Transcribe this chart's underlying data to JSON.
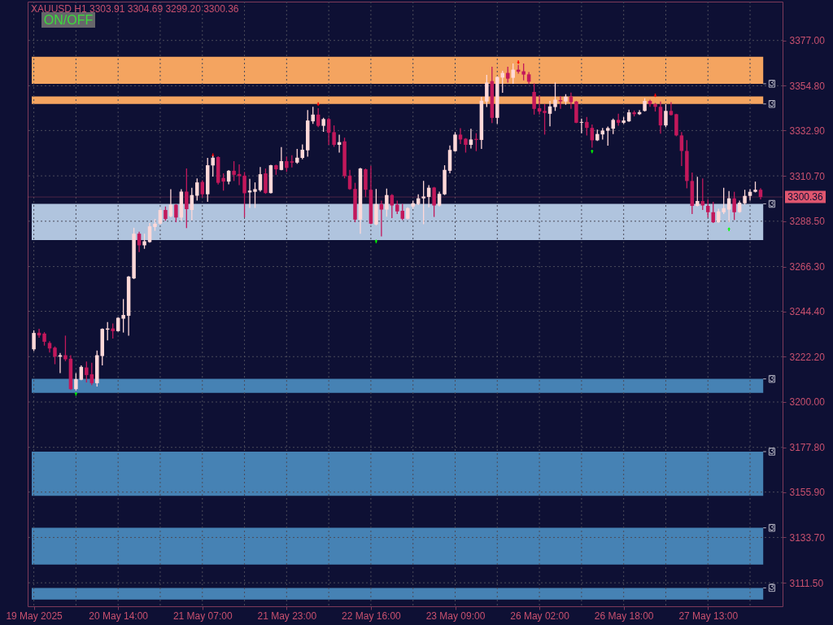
{
  "chart_data": {
    "type": "candlestick",
    "title": "XAUUSD H1 3303.91 3304.69 3299.20 3300.36",
    "annotations": [
      "ON/OFF"
    ],
    "categories": [
      "19 May 2025",
      null,
      null,
      null,
      null,
      null,
      null,
      null,
      null,
      null,
      null,
      null,
      null,
      null,
      null,
      null,
      "20 May 14:00",
      null,
      null,
      null,
      null,
      null,
      null,
      null,
      null,
      null,
      null,
      null,
      null,
      null,
      null,
      null,
      "21 May 07:00",
      null,
      null,
      null,
      null,
      null,
      null,
      null,
      null,
      null,
      null,
      null,
      null,
      null,
      null,
      null,
      "21 May 23:00",
      null,
      null,
      null,
      null,
      null,
      null,
      null,
      null,
      null,
      null,
      null,
      null,
      null,
      null,
      null,
      "22 May 16:00",
      null,
      null,
      null,
      null,
      null,
      null,
      null,
      null,
      null,
      null,
      null,
      null,
      null,
      null,
      null,
      "23 May 09:00",
      null,
      null,
      null,
      null,
      null,
      null,
      null,
      null,
      null,
      null,
      null,
      null,
      null,
      null,
      null,
      "26 May 02:00",
      null,
      null,
      null,
      null,
      null,
      null,
      null,
      null,
      null,
      null,
      null,
      null,
      null,
      null,
      null,
      "26 May 18:00",
      null,
      null,
      null,
      null,
      null,
      null,
      null,
      null,
      null,
      null,
      null,
      null,
      null,
      null,
      null,
      "27 May 13:00",
      null,
      null,
      null,
      null,
      null,
      null,
      null,
      null,
      null,
      null
    ],
    "ohlc": [
      [
        3225.8,
        3235.1,
        3224.9,
        3233.8
      ],
      [
        3233.9,
        3235.8,
        3231.5,
        3232.6
      ],
      [
        3233.5,
        3234.2,
        3227.6,
        3229.5
      ],
      [
        3228.9,
        3229.8,
        3224.2,
        3226.2
      ],
      [
        3226.6,
        3227.2,
        3218.5,
        3222.2
      ],
      [
        3222.2,
        3224.0,
        3214.1,
        3222.9
      ],
      [
        3222.9,
        3232.5,
        3220.0,
        3220.9
      ],
      [
        3221.2,
        3222.9,
        3205.9,
        3206.3
      ],
      [
        3206.3,
        3214.1,
        3205.6,
        3211.2
      ],
      [
        3210.9,
        3217.9,
        3210.7,
        3217.2
      ],
      [
        3216.9,
        3219.8,
        3209.6,
        3213.2
      ],
      [
        3213.6,
        3219.2,
        3208.3,
        3209.2
      ],
      [
        3209.2,
        3225.2,
        3207.6,
        3222.9
      ],
      [
        3222.5,
        3236.0,
        3217.9,
        3235.8
      ],
      [
        3235.4,
        3239.1,
        3230.2,
        3236.0
      ],
      [
        3236.0,
        3238.4,
        3231.1,
        3234.7
      ],
      [
        3234.7,
        3241.5,
        3234.5,
        3241.2
      ],
      [
        3240.8,
        3250.4,
        3234.0,
        3242.6
      ],
      [
        3242.2,
        3261.6,
        3232.5,
        3261.4
      ],
      [
        3260.5,
        3285.3,
        3260.2,
        3282.4
      ],
      [
        3282.4,
        3283.4,
        3273.4,
        3276.7
      ],
      [
        3276.7,
        3282.4,
        3275.0,
        3278.7
      ],
      [
        3278.3,
        3287.6,
        3278.0,
        3286.0
      ],
      [
        3285.7,
        3289.6,
        3283.8,
        3287.3
      ],
      [
        3287.3,
        3294.9,
        3286.9,
        3294.0
      ],
      [
        3294.0,
        3295.7,
        3288.7,
        3289.6
      ],
      [
        3290.9,
        3304.2,
        3290.4,
        3296.6
      ],
      [
        3296.6,
        3296.9,
        3288.0,
        3290.3
      ],
      [
        3290.3,
        3304.2,
        3288.7,
        3303.0
      ],
      [
        3303.0,
        3314.3,
        3285.1,
        3294.4
      ],
      [
        3294.0,
        3304.9,
        3288.9,
        3301.3
      ],
      [
        3301.0,
        3309.5,
        3298.6,
        3307.5
      ],
      [
        3307.7,
        3308.6,
        3300.2,
        3301.7
      ],
      [
        3301.7,
        3319.5,
        3298.0,
        3315.9
      ],
      [
        3315.8,
        3320.5,
        3310.3,
        3319.6
      ],
      [
        3319.9,
        3320.3,
        3306.5,
        3307.3
      ],
      [
        3309.7,
        3311.9,
        3303.5,
        3307.9
      ],
      [
        3307.9,
        3313.5,
        3306.6,
        3313.2
      ],
      [
        3313.2,
        3317.9,
        3308.2,
        3311.2
      ],
      [
        3311.6,
        3316.3,
        3306.2,
        3310.6
      ],
      [
        3310.8,
        3312.6,
        3290.4,
        3302.2
      ],
      [
        3302.6,
        3309.3,
        3295.0,
        3303.5
      ],
      [
        3302.9,
        3307.5,
        3295.0,
        3304.2
      ],
      [
        3303.7,
        3315.0,
        3303.0,
        3311.5
      ],
      [
        3311.9,
        3314.3,
        3301.9,
        3302.3
      ],
      [
        3302.3,
        3316.1,
        3302.1,
        3315.9
      ],
      [
        3315.9,
        3316.2,
        3311.2,
        3313.9
      ],
      [
        3313.6,
        3324.8,
        3313.4,
        3317.9
      ],
      [
        3317.9,
        3320.1,
        3312.6,
        3314.6
      ],
      [
        3317.8,
        3320.8,
        3314.8,
        3317.2
      ],
      [
        3317.2,
        3323.9,
        3316.6,
        3319.6
      ],
      [
        3319.5,
        3326.1,
        3318.8,
        3323.5
      ],
      [
        3323.2,
        3342.9,
        3320.1,
        3337.8
      ],
      [
        3337.4,
        3344.5,
        3336.1,
        3340.7
      ],
      [
        3340.7,
        3343.8,
        3334.5,
        3335.2
      ],
      [
        3335.2,
        3339.1,
        3332.3,
        3338.5
      ],
      [
        3338.5,
        3339.1,
        3325.9,
        3331.8
      ],
      [
        3332.1,
        3335.4,
        3324.9,
        3325.9
      ],
      [
        3325.9,
        3330.9,
        3322.1,
        3327.2
      ],
      [
        3327.6,
        3329.4,
        3309.5,
        3310.6
      ],
      [
        3310.8,
        3313.6,
        3303.9,
        3304.2
      ],
      [
        3304.3,
        3307.3,
        3288.0,
        3289.3
      ],
      [
        3289.3,
        3314.6,
        3282.4,
        3314.3
      ],
      [
        3313.9,
        3314.3,
        3300.3,
        3303.9
      ],
      [
        3303.9,
        3315.6,
        3287.0,
        3287.3
      ],
      [
        3286.9,
        3304.3,
        3286.5,
        3296.9
      ],
      [
        3296.9,
        3298.6,
        3281.1,
        3294.2
      ],
      [
        3294.2,
        3304.5,
        3290.7,
        3301.3
      ],
      [
        3301.3,
        3301.8,
        3290.0,
        3296.2
      ],
      [
        3296.6,
        3298.6,
        3292.0,
        3293.3
      ],
      [
        3293.6,
        3297.0,
        3289.0,
        3289.7
      ],
      [
        3289.7,
        3295.3,
        3289.5,
        3294.9
      ],
      [
        3295.7,
        3298.6,
        3294.6,
        3297.3
      ],
      [
        3296.9,
        3301.7,
        3296.4,
        3299.7
      ],
      [
        3299.7,
        3308.3,
        3287.0,
        3300.6
      ],
      [
        3300.4,
        3306.2,
        3295.3,
        3304.9
      ],
      [
        3305.0,
        3305.3,
        3290.6,
        3296.2
      ],
      [
        3296.2,
        3303.0,
        3295.7,
        3301.9
      ],
      [
        3301.7,
        3315.9,
        3301.3,
        3313.6
      ],
      [
        3313.2,
        3325.6,
        3311.9,
        3323.4
      ],
      [
        3322.8,
        3332.1,
        3322.5,
        3330.9
      ],
      [
        3330.9,
        3334.1,
        3326.3,
        3328.5
      ],
      [
        3328.9,
        3329.2,
        3322.1,
        3325.9
      ],
      [
        3325.9,
        3333.8,
        3324.1,
        3328.5
      ],
      [
        3328.8,
        3331.6,
        3322.8,
        3328.3
      ],
      [
        3328.3,
        3349.4,
        3323.9,
        3347.5
      ],
      [
        3347.1,
        3360.1,
        3344.4,
        3356.4
      ],
      [
        3357.1,
        3364.1,
        3336.5,
        3339.1
      ],
      [
        3339.1,
        3359.4,
        3336.1,
        3359.1
      ],
      [
        3358.8,
        3362.1,
        3351.4,
        3361.1
      ],
      [
        3361.1,
        3364.1,
        3356.4,
        3358.3
      ],
      [
        3358.7,
        3365.7,
        3355.8,
        3362.7
      ],
      [
        3362.7,
        3365.0,
        3360.7,
        3361.7
      ],
      [
        3361.9,
        3365.7,
        3357.5,
        3360.3
      ],
      [
        3360.4,
        3361.5,
        3355.7,
        3356.8
      ],
      [
        3351.8,
        3356.0,
        3340.7,
        3343.5
      ],
      [
        3343.8,
        3350.2,
        3340.7,
        3342.2
      ],
      [
        3342.5,
        3345.8,
        3330.9,
        3341.5
      ],
      [
        3341.1,
        3347.4,
        3334.9,
        3344.7
      ],
      [
        3344.4,
        3356.4,
        3342.5,
        3348.0
      ],
      [
        3347.8,
        3349.8,
        3343.5,
        3347.2
      ],
      [
        3347.1,
        3350.7,
        3345.5,
        3349.5
      ],
      [
        3349.5,
        3351.5,
        3343.5,
        3346.8
      ],
      [
        3347.1,
        3347.4,
        3336.5,
        3336.7
      ],
      [
        3336.7,
        3338.7,
        3331.6,
        3337.1
      ],
      [
        3337.1,
        3339.5,
        3330.5,
        3334.2
      ],
      [
        3334.2,
        3335.8,
        3324.5,
        3328.1
      ],
      [
        3328.1,
        3333.4,
        3327.8,
        3331.2
      ],
      [
        3331.0,
        3334.2,
        3328.5,
        3332.9
      ],
      [
        3332.8,
        3334.8,
        3325.5,
        3334.1
      ],
      [
        3333.8,
        3338.7,
        3331.2,
        3338.1
      ],
      [
        3338.1,
        3341.1,
        3335.2,
        3336.7
      ],
      [
        3336.7,
        3339.5,
        3336.1,
        3337.8
      ],
      [
        3337.4,
        3343.1,
        3337.1,
        3341.8
      ],
      [
        3341.8,
        3342.7,
        3339.8,
        3340.9
      ],
      [
        3340.9,
        3342.9,
        3340.5,
        3341.9
      ],
      [
        3342.5,
        3348.7,
        3342.2,
        3347.4
      ],
      [
        3347.4,
        3348.0,
        3344.5,
        3345.8
      ],
      [
        3345.8,
        3346.4,
        3342.2,
        3344.5
      ],
      [
        3344.5,
        3347.1,
        3331.4,
        3335.4
      ],
      [
        3335.4,
        3345.8,
        3334.5,
        3342.5
      ],
      [
        3342.5,
        3346.8,
        3340.2,
        3340.5
      ],
      [
        3340.9,
        3341.1,
        3330.1,
        3330.5
      ],
      [
        3330.5,
        3332.2,
        3315.5,
        3322.9
      ],
      [
        3322.9,
        3328.2,
        3304.6,
        3308.2
      ],
      [
        3308.2,
        3312.3,
        3292.0,
        3296.0
      ],
      [
        3296.0,
        3310.2,
        3295.7,
        3298.4
      ],
      [
        3298.4,
        3309.5,
        3294.0,
        3296.2
      ],
      [
        3296.0,
        3299.3,
        3290.3,
        3292.9
      ],
      [
        3292.9,
        3298.0,
        3287.6,
        3288.0
      ],
      [
        3288.0,
        3294.6,
        3287.7,
        3293.3
      ],
      [
        3292.9,
        3304.9,
        3292.0,
        3294.9
      ],
      [
        3294.2,
        3303.3,
        3288.0,
        3299.7
      ],
      [
        3299.7,
        3302.9,
        3289.1,
        3292.9
      ],
      [
        3293.0,
        3298.6,
        3292.6,
        3297.6
      ],
      [
        3297.3,
        3303.9,
        3296.6,
        3300.9
      ],
      [
        3300.9,
        3304.2,
        3298.6,
        3302.9
      ],
      [
        3302.9,
        3307.9,
        3302.6,
        3303.9
      ],
      [
        3303.91,
        3304.69,
        3299.2,
        3300.36
      ]
    ],
    "colors": [
      "#ffd8d8",
      "#c2185b",
      "#c2185b",
      "#c2185b",
      "#c2185b",
      "#ffd8d8",
      "#c2185b",
      "#c2185b",
      "#ffd8d8",
      "#ffd8d8",
      "#c2185b",
      "#c2185b",
      "#ffd8d8",
      "#ffd8d8",
      "#ffd8d8",
      "#c2185b",
      "#ffd8d8",
      "#ffd8d8",
      "#ffd8d8",
      "#ffd8d8",
      "#c2185b",
      "#ffd8d8",
      "#ffd8d8",
      "#ffd8d8",
      "#ffd8d8",
      "#c2185b",
      "#ffd8d8",
      "#c2185b",
      "#ffd8d8",
      "#c2185b",
      "#ffd8d8",
      "#ffd8d8",
      "#c2185b",
      "#ffd8d8",
      "#ffd8d8",
      "#c2185b",
      "#c2185b",
      "#ffd8d8",
      "#c2185b",
      "#c2185b",
      "#c2185b",
      "#ffd8d8",
      "#ffd8d8",
      "#ffd8d8",
      "#c2185b",
      "#ffd8d8",
      "#c2185b",
      "#ffd8d8",
      "#c2185b",
      "#c2185b",
      "#ffd8d8",
      "#ffd8d8",
      "#ffd8d8",
      "#ffd8d8",
      "#c2185b",
      "#ffd8d8",
      "#c2185b",
      "#c2185b",
      "#ffd8d8",
      "#c2185b",
      "#c2185b",
      "#c2185b",
      "#ffd8d8",
      "#c2185b",
      "#c2185b",
      "#ffd8d8",
      "#c2185b",
      "#ffd8d8",
      "#c2185b",
      "#c2185b",
      "#c2185b",
      "#ffd8d8",
      "#ffd8d8",
      "#ffd8d8",
      "#ffd8d8",
      "#ffd8d8",
      "#c2185b",
      "#ffd8d8",
      "#ffd8d8",
      "#ffd8d8",
      "#ffd8d8",
      "#c2185b",
      "#c2185b",
      "#ffd8d8",
      "#c2185b",
      "#ffd8d8",
      "#ffd8d8",
      "#c2185b",
      "#ffd8d8",
      "#ffd8d8",
      "#c2185b",
      "#ffd8d8",
      "#c2185b",
      "#c2185b",
      "#c2185b",
      "#c2185b",
      "#c2185b",
      "#c2185b",
      "#ffd8d8",
      "#ffd8d8",
      "#c2185b",
      "#ffd8d8",
      "#c2185b",
      "#c2185b",
      "#ffd8d8",
      "#c2185b",
      "#c2185b",
      "#ffd8d8",
      "#ffd8d8",
      "#ffd8d8",
      "#ffd8d8",
      "#c2185b",
      "#ffd8d8",
      "#ffd8d8",
      "#c2185b",
      "#ffd8d8",
      "#ffd8d8",
      "#c2185b",
      "#c2185b",
      "#c2185b",
      "#ffd8d8",
      "#c2185b",
      "#c2185b",
      "#c2185b",
      "#c2185b",
      "#c2185b",
      "#ffd8d8",
      "#c2185b",
      "#c2185b",
      "#c2185b",
      "#ffd8d8",
      "#ffd8d8",
      "#ffd8d8",
      "#c2185b",
      "#ffd8d8",
      "#ffd8d8",
      "#ffd8d8",
      "#ffd8d8",
      "#c2185b"
    ],
    "ylim": [
      3100,
      3396
    ],
    "yticks": [
      {
        "value": 3111.5,
        "label": "3111.50"
      },
      {
        "value": 3133.7,
        "label": "3133.70"
      },
      {
        "value": 3155.9,
        "label": "3155.90"
      },
      {
        "value": 3177.8,
        "label": "3177.80"
      },
      {
        "value": 3200,
        "label": "3200.00"
      },
      {
        "value": 3222.2,
        "label": "3222.20"
      },
      {
        "value": 3244.4,
        "label": "3244.40"
      },
      {
        "value": 3266.3,
        "label": "3266.30"
      },
      {
        "value": 3288.5,
        "label": "3288.50"
      },
      {
        "value": 3310.7,
        "label": "3310.70"
      },
      {
        "value": 3332.9,
        "label": "3332.90"
      },
      {
        "value": 3354.8,
        "label": "3354.80"
      },
      {
        "value": 3377,
        "label": "3377.00"
      }
    ],
    "grid": true,
    "ref_lines": [
      {
        "axis": "y",
        "value": 3300.36,
        "label": "3300.36",
        "color": "#e0566f"
      }
    ],
    "bands": [
      {
        "axis": "y",
        "from": 3355.8,
        "to": 3369.0,
        "label": "3",
        "color": "#f4a460"
      },
      {
        "axis": "y",
        "from": 3345.9,
        "to": 3349.6,
        "label": "3",
        "color": "#f4a460"
      },
      {
        "axis": "y",
        "from": 3279.3,
        "to": 3297.0,
        "label": "3",
        "color": "#b0c4de"
      },
      {
        "axis": "y",
        "from": 3204.5,
        "to": 3211.3,
        "label": "3",
        "color": "#4682b4"
      },
      {
        "axis": "y",
        "from": 3154.1,
        "to": 3175.7,
        "label": "3",
        "color": "#4682b4"
      },
      {
        "axis": "y",
        "from": 3120.4,
        "to": 3138.4,
        "label": "3",
        "color": "#4682b4"
      },
      {
        "axis": "y",
        "from": 3103.3,
        "to": 3109.0,
        "label": "3",
        "color": "#4682b4"
      }
    ],
    "series": [
      {
        "type": "scatter",
        "color": "#ff0000",
        "marker": "triangle",
        "values": [
          null,
          null,
          null,
          null,
          null,
          null,
          null,
          null,
          null,
          null,
          null,
          null,
          null,
          null,
          null,
          null,
          null,
          null,
          null,
          null,
          null,
          null,
          null,
          null,
          null,
          null,
          null,
          null,
          null,
          null,
          null,
          null,
          null,
          null,
          3320.8,
          null,
          null,
          null,
          null,
          null,
          null,
          null,
          null,
          null,
          null,
          null,
          null,
          null,
          null,
          null,
          null,
          null,
          null,
          null,
          3345.8,
          null,
          null,
          null,
          null,
          null,
          null,
          null,
          null,
          null,
          null,
          null,
          null,
          null,
          null,
          null,
          null,
          null,
          null,
          null,
          null,
          null,
          null,
          null,
          null,
          null,
          null,
          null,
          null,
          null,
          null,
          null,
          null,
          null,
          null,
          null,
          null,
          null,
          3366.3,
          null,
          null,
          null,
          null,
          null,
          null,
          null,
          null,
          null,
          null,
          null,
          null,
          null,
          null,
          null,
          null,
          null,
          null,
          null,
          null,
          null,
          null,
          null,
          null,
          null,
          3350.1,
          null,
          null,
          null,
          null,
          null,
          null,
          null,
          null,
          null,
          null,
          null,
          null,
          null,
          null,
          null,
          null,
          null,
          null,
          null,
          null
        ]
      },
      {
        "type": "scatter",
        "color": "#00ff00",
        "marker": "triangle",
        "values": [
          null,
          null,
          null,
          null,
          null,
          null,
          null,
          null,
          3204.0,
          null,
          null,
          null,
          null,
          null,
          null,
          null,
          null,
          null,
          null,
          null,
          null,
          null,
          null,
          null,
          null,
          null,
          null,
          null,
          null,
          null,
          null,
          null,
          null,
          null,
          null,
          null,
          null,
          null,
          null,
          null,
          null,
          null,
          null,
          null,
          null,
          null,
          null,
          null,
          null,
          null,
          null,
          null,
          null,
          null,
          null,
          null,
          null,
          null,
          null,
          null,
          null,
          null,
          null,
          null,
          null,
          3278.7,
          null,
          null,
          null,
          null,
          null,
          null,
          null,
          null,
          null,
          null,
          null,
          null,
          null,
          null,
          null,
          null,
          null,
          null,
          null,
          null,
          null,
          null,
          null,
          null,
          null,
          null,
          null,
          null,
          null,
          null,
          null,
          null,
          null,
          null,
          null,
          null,
          null,
          null,
          null,
          null,
          3322.7,
          null,
          null,
          null,
          null,
          null,
          null,
          null,
          null,
          null,
          null,
          null,
          null,
          null,
          null,
          null,
          null,
          null,
          null,
          null,
          null,
          null,
          null,
          null,
          null,
          null,
          3284.6,
          null,
          null,
          null,
          null,
          null,
          null
        ]
      }
    ]
  }
}
